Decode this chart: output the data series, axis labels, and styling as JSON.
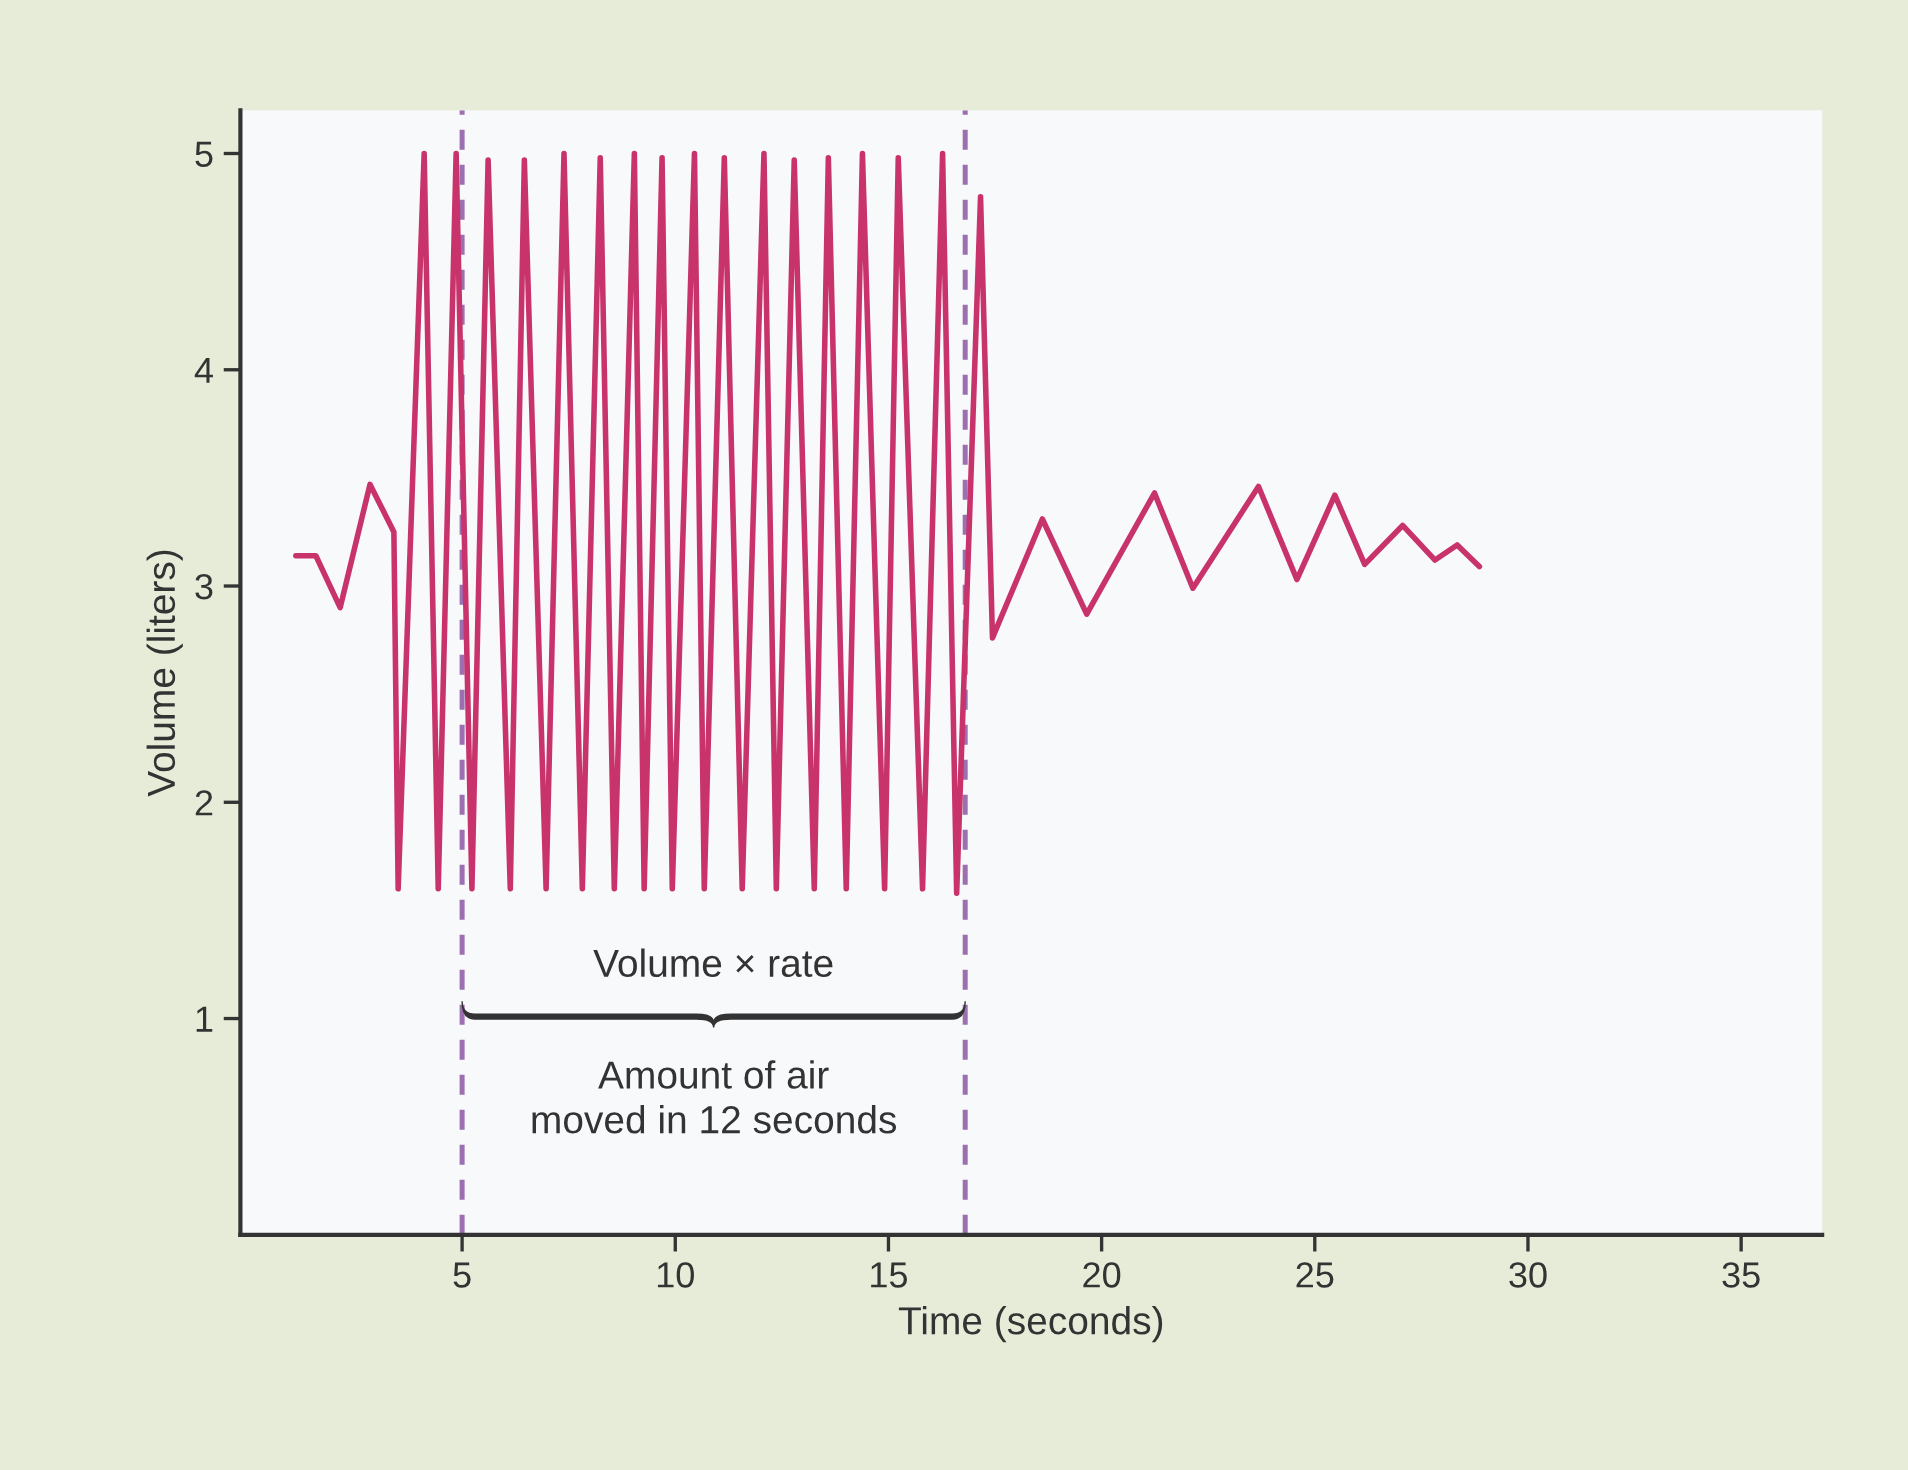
{
  "chart_data": {
    "type": "line",
    "xlabel": "Time (seconds)",
    "ylabel": "Volume (liters)",
    "series": [
      {
        "color": "#c8336b",
        "x": [
          1.1,
          1.57,
          2.14,
          2.84,
          3.4,
          3.5,
          4.11,
          4.44,
          4.86,
          5.23,
          5.61,
          6.13,
          6.46,
          6.97,
          7.39,
          7.82,
          8.24,
          8.57,
          9.04,
          9.27,
          9.69,
          9.93,
          10.45,
          10.68,
          11.15,
          11.57,
          12.08,
          12.37,
          12.79,
          13.26,
          13.59,
          14.01,
          14.39,
          14.91,
          15.23,
          15.8,
          16.27,
          16.6,
          17.16,
          17.44,
          18.61,
          19.65,
          21.24,
          22.14,
          23.68,
          24.58,
          25.47,
          26.17,
          27.06,
          27.82,
          28.34,
          28.86
        ],
        "values": [
          3.14,
          3.14,
          2.9,
          3.47,
          3.25,
          1.6,
          5.0,
          1.6,
          5.0,
          1.6,
          4.97,
          1.6,
          4.97,
          1.6,
          5.0,
          1.6,
          4.98,
          1.6,
          5.0,
          1.6,
          4.98,
          1.6,
          5.0,
          1.6,
          4.98,
          1.6,
          5.0,
          1.6,
          4.97,
          1.6,
          4.98,
          1.6,
          5.0,
          1.6,
          4.98,
          1.6,
          5.0,
          1.58,
          4.8,
          2.76,
          3.31,
          2.87,
          3.43,
          2.99,
          3.46,
          3.03,
          3.42,
          3.1,
          3.28,
          3.12,
          3.19,
          3.09
        ]
      }
    ],
    "xlim": [
      -0.2,
      36.9
    ],
    "ylim": [
      0,
      5.2
    ],
    "xticks": [
      5,
      10,
      15,
      20,
      25,
      30,
      35
    ],
    "yticks": [
      1,
      2,
      3,
      4,
      5
    ],
    "ref_lines": [
      {
        "axis": "x",
        "value": 5.0,
        "color": "#9b6fb0",
        "line_style": "dashed"
      },
      {
        "axis": "x",
        "value": 16.8,
        "color": "#9b6fb0",
        "line_style": "dashed"
      }
    ],
    "annotations": [
      "Volume × rate",
      "Amount of air\nmoved in 12 seconds"
    ],
    "grid": false,
    "legend": false,
    "marker": "none",
    "line_style": "solid"
  }
}
